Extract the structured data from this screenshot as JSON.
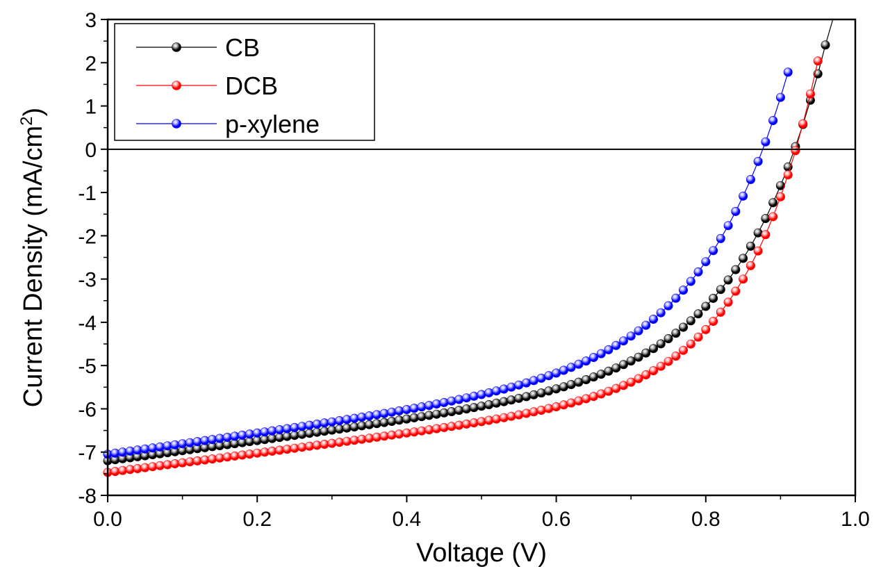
{
  "chart_data": {
    "type": "scatter",
    "title": "",
    "xlabel": "Voltage (V)",
    "ylabel": "Current Density (mA/cm",
    "ylabel_sup": "2",
    "ylabel_close": ")",
    "xlim": [
      0.0,
      1.0
    ],
    "ylim": [
      -8,
      3
    ],
    "x_ticks": [
      "0.0",
      "0.2",
      "0.4",
      "0.6",
      "0.8",
      "1.0"
    ],
    "y_ticks": [
      "-8",
      "-7",
      "-6",
      "-5",
      "-4",
      "-3",
      "-2",
      "-1",
      "0",
      "1",
      "2",
      "3"
    ],
    "grid": false,
    "legend_position": "top-left",
    "zero_line": true,
    "x_step": 0.01,
    "series": [
      {
        "name": "CB",
        "color": "#000000",
        "highlight": "#bbbbbb",
        "curve": {
          "jsc": 7.2,
          "k": 2.3,
          "j0": 0.0012,
          "a": 0.11,
          "y_start": -7.2,
          "x_max": 0.98
        }
      },
      {
        "name": "DCB",
        "color": "#ff0000",
        "highlight": "#ffbbbb",
        "curve": {
          "jsc": 7.47,
          "k": 2.22,
          "j0": 0.000336,
          "a": 0.095,
          "y_start": -7.47,
          "x_max": 0.95
        }
      },
      {
        "name": "p-xylene",
        "color": "#0000ff",
        "highlight": "#bbbbff",
        "curve": {
          "jsc": 7.05,
          "k": 2.4,
          "j0": 0.00227,
          "a": 0.114,
          "y_start": -7.05,
          "x_max": 0.91
        }
      }
    ]
  }
}
